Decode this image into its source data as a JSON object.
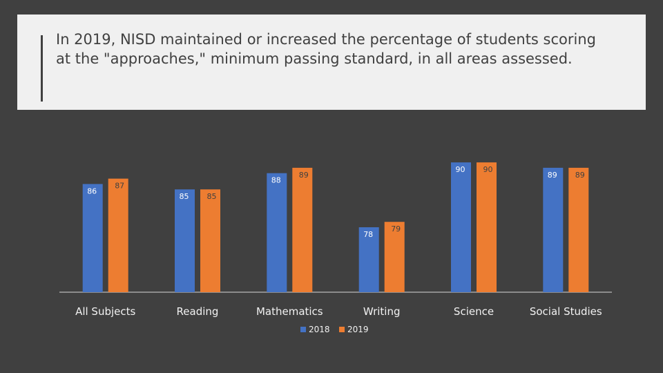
{
  "slide": {
    "title": "In 2019, NISD maintained or increased the percentage of students scoring at the \"approaches,\" minimum passing standard, in all areas assessed."
  },
  "colors": {
    "background": "#404040",
    "title_panel": "#f0f0f0",
    "series_2018": "#4472c4",
    "series_2019": "#ed7d31",
    "label_on_bar": "#ffffff",
    "label_dark": "#404040"
  },
  "chart_data": {
    "type": "bar",
    "title": "In 2019, NISD maintained or increased the percentage of students scoring at the \"approaches,\" minimum passing standard, in all areas assessed.",
    "categories": [
      "All Subjects",
      "Reading",
      "Mathematics",
      "Writing",
      "Science",
      "Social Studies"
    ],
    "series": [
      {
        "name": "2018",
        "values": [
          86,
          85,
          88,
          78,
          90,
          89
        ]
      },
      {
        "name": "2019",
        "values": [
          87,
          85,
          89,
          79,
          90,
          89
        ]
      }
    ],
    "xlabel": "",
    "ylabel": "",
    "ylim": [
      66,
      92
    ],
    "grid": false,
    "legend": "bottom",
    "data_labels": true
  }
}
